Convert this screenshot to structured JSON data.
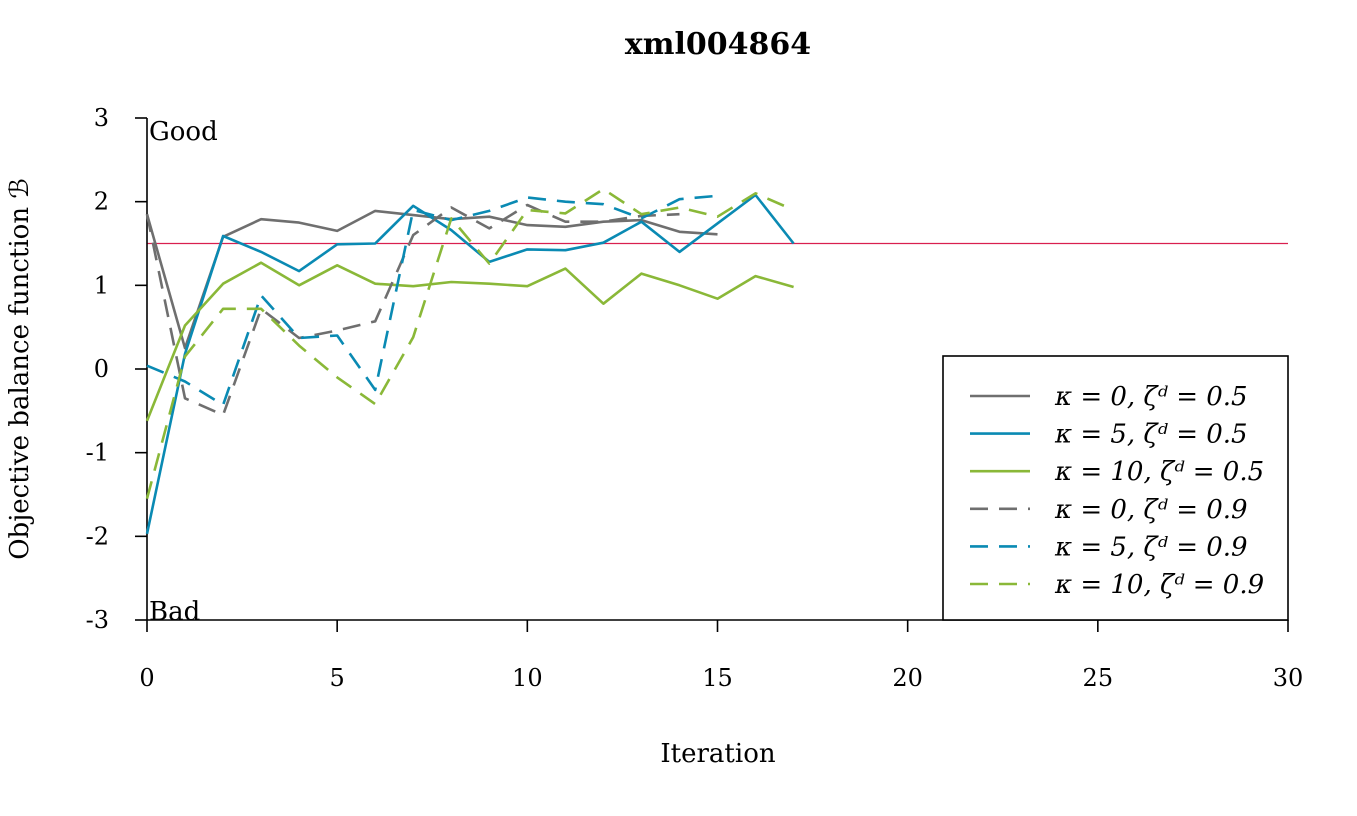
{
  "chart_data": {
    "type": "line",
    "title": "xml004864",
    "xlabel": "Iteration",
    "ylabel": "Objective balance function ℬ",
    "xlim": [
      0,
      30
    ],
    "ylim": [
      -3,
      3
    ],
    "xticks": [
      0,
      5,
      10,
      15,
      20,
      25,
      30
    ],
    "yticks": [
      -3,
      -2,
      -1,
      0,
      1,
      2,
      3
    ],
    "annotations": {
      "top": "Good",
      "bottom": "Bad"
    },
    "reference_line": {
      "y": 1.5,
      "color": "#d9204f"
    },
    "legend_position": "bottom-right",
    "series": [
      {
        "name": "κ = 0, ζᵈ = 0.5",
        "color": "#6f6f6f",
        "dash": "solid",
        "x": [
          0,
          1,
          2,
          3,
          4,
          5,
          6,
          7,
          8,
          9,
          10,
          11,
          12,
          13,
          14,
          15
        ],
        "y": [
          1.85,
          0.25,
          1.58,
          1.79,
          1.75,
          1.65,
          1.89,
          1.84,
          1.79,
          1.82,
          1.72,
          1.7,
          1.76,
          1.78,
          1.64,
          1.61
        ]
      },
      {
        "name": "κ = 5, ζᵈ = 0.5",
        "color": "#0a8ab3",
        "dash": "solid",
        "x": [
          0,
          1,
          2,
          3,
          4,
          5,
          6,
          7,
          8,
          9,
          10,
          11,
          12,
          13,
          14,
          15,
          16,
          17
        ],
        "y": [
          -1.97,
          0.18,
          1.59,
          1.4,
          1.17,
          1.49,
          1.5,
          1.95,
          1.66,
          1.28,
          1.43,
          1.42,
          1.51,
          1.76,
          1.4,
          1.74,
          2.08,
          1.5
        ]
      },
      {
        "name": "κ = 10, ζᵈ = 0.5",
        "color": "#8ab838",
        "dash": "solid",
        "x": [
          0,
          1,
          2,
          3,
          4,
          5,
          6,
          7,
          8,
          9,
          10,
          11,
          12,
          13,
          14,
          15,
          16,
          17
        ],
        "y": [
          -0.62,
          0.52,
          1.02,
          1.27,
          1.0,
          1.24,
          1.02,
          0.99,
          1.04,
          1.02,
          0.99,
          1.2,
          0.78,
          1.14,
          1.0,
          0.84,
          1.11,
          0.98
        ]
      },
      {
        "name": "κ = 0, ζᵈ = 0.9",
        "color": "#6f6f6f",
        "dash": "dashed",
        "x": [
          0,
          1,
          2,
          3,
          4,
          5,
          6,
          7,
          8,
          9,
          10,
          11,
          12,
          13,
          14
        ],
        "y": [
          1.85,
          -0.35,
          -0.55,
          0.72,
          0.37,
          0.46,
          0.57,
          1.6,
          1.93,
          1.68,
          1.96,
          1.76,
          1.76,
          1.83,
          1.85
        ]
      },
      {
        "name": "κ = 5, ζᵈ = 0.9",
        "color": "#0a8ab3",
        "dash": "dashed",
        "x": [
          0,
          1,
          2,
          3,
          4,
          5,
          6,
          7,
          8,
          9,
          10,
          11,
          12,
          13,
          14,
          15
        ],
        "y": [
          0.04,
          -0.15,
          -0.43,
          0.88,
          0.37,
          0.4,
          -0.25,
          1.9,
          1.78,
          1.89,
          2.05,
          2.0,
          1.97,
          1.8,
          2.03,
          2.07
        ]
      },
      {
        "name": "κ = 10, ζᵈ = 0.9",
        "color": "#8ab838",
        "dash": "dashed",
        "x": [
          0,
          1,
          2,
          3,
          4,
          5,
          6,
          7,
          8,
          9,
          10,
          11,
          12,
          13,
          14,
          15,
          16,
          17
        ],
        "y": [
          -1.55,
          0.15,
          0.72,
          0.72,
          0.28,
          -0.1,
          -0.42,
          0.38,
          1.8,
          1.26,
          1.9,
          1.86,
          2.15,
          1.85,
          1.93,
          1.82,
          2.1,
          1.9
        ]
      }
    ]
  }
}
